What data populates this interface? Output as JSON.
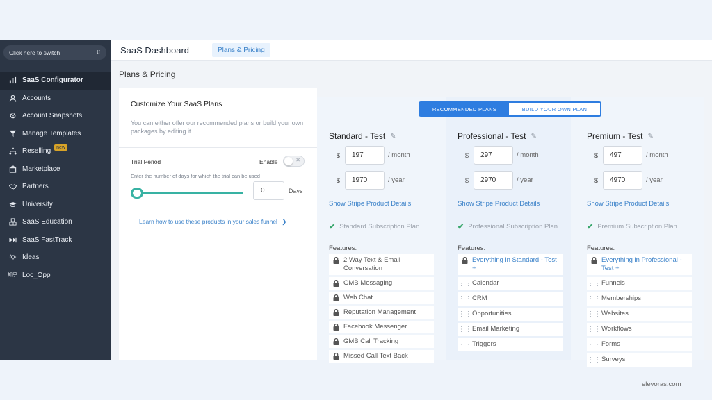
{
  "sidebar": {
    "switcher_label": "Click here to switch",
    "items": [
      {
        "label": "SaaS Configurator",
        "icon": "bar-chart-icon",
        "active": true
      },
      {
        "label": "Accounts",
        "icon": "user-icon"
      },
      {
        "label": "Account Snapshots",
        "icon": "gear-icon"
      },
      {
        "label": "Manage Templates",
        "icon": "filter-icon"
      },
      {
        "label": "Reselling",
        "icon": "sitemap-icon",
        "badge": "new"
      },
      {
        "label": "Marketplace",
        "icon": "shopping-bag-icon"
      },
      {
        "label": "Partners",
        "icon": "handshake-icon"
      },
      {
        "label": "University",
        "icon": "graduation-cap-icon"
      },
      {
        "label": "SaaS Education",
        "icon": "cubes-icon"
      },
      {
        "label": "SaaS FastTrack",
        "icon": "fast-forward-icon"
      },
      {
        "label": "Ideas",
        "icon": "lightbulb-icon"
      },
      {
        "label": "Loc_Opp",
        "icon": "text-glyph-icon",
        "icon_text": "知乎"
      }
    ]
  },
  "header": {
    "title": "SaaS Dashboard",
    "tab": "Plans & Pricing"
  },
  "page_title": "Plans & Pricing",
  "settings": {
    "heading": "Customize Your SaaS Plans",
    "description": "You can either offer our recommended plans or build your own packages by editing it.",
    "trial_label": "Trial Period",
    "enable_label": "Enable",
    "trial_help": "Enter the number of days for which the trial can be used",
    "trial_days": "0",
    "days_label": "Days",
    "slider_fraction": 0,
    "learn_link": "Learn how to use these products in your sales funnel"
  },
  "plan_switch": {
    "recommended": "RECOMMENDED PLANS",
    "build": "BUILD YOUR OWN PLAN"
  },
  "plans": [
    {
      "name": "Standard - Test",
      "currency": "$",
      "monthly": "197",
      "yearly": "1970",
      "per_month": "/ month",
      "per_year": "/ year",
      "stripe_link": "Show Stripe Product Details",
      "subscription": "Standard Subscription Plan",
      "features_label": "Features:",
      "features": [
        {
          "text": "2 Way Text & Email Conversation",
          "icon": "lock-icon"
        },
        {
          "text": "GMB Messaging",
          "icon": "lock-icon"
        },
        {
          "text": "Web Chat",
          "icon": "lock-icon"
        },
        {
          "text": "Reputation Management",
          "icon": "lock-icon"
        },
        {
          "text": "Facebook Messenger",
          "icon": "lock-icon"
        },
        {
          "text": "GMB Call Tracking",
          "icon": "lock-icon"
        },
        {
          "text": "Missed Call Text Back",
          "icon": "lock-icon"
        }
      ]
    },
    {
      "name": "Professional - Test",
      "currency": "$",
      "monthly": "297",
      "yearly": "2970",
      "per_month": "/ month",
      "per_year": "/ year",
      "stripe_link": "Show Stripe Product Details",
      "subscription": "Professional Subscription Plan",
      "features_label": "Features:",
      "features": [
        {
          "text": "Everything in Standard - Test +",
          "icon": "lock-icon",
          "highlight": true
        },
        {
          "text": "Calendar",
          "icon": "drag-handle-icon"
        },
        {
          "text": "CRM",
          "icon": "drag-handle-icon"
        },
        {
          "text": "Opportunities",
          "icon": "drag-handle-icon"
        },
        {
          "text": "Email Marketing",
          "icon": "drag-handle-icon"
        },
        {
          "text": "Triggers",
          "icon": "drag-handle-icon"
        }
      ]
    },
    {
      "name": "Premium - Test",
      "currency": "$",
      "monthly": "497",
      "yearly": "4970",
      "per_month": "/ month",
      "per_year": "/ year",
      "stripe_link": "Show Stripe Product Details",
      "subscription": "Premium Subscription Plan",
      "features_label": "Features:",
      "features": [
        {
          "text": "Everything in Professional - Test +",
          "icon": "lock-icon",
          "highlight": true
        },
        {
          "text": "Funnels",
          "icon": "drag-handle-icon"
        },
        {
          "text": "Memberships",
          "icon": "drag-handle-icon"
        },
        {
          "text": "Websites",
          "icon": "drag-handle-icon"
        },
        {
          "text": "Workflows",
          "icon": "drag-handle-icon"
        },
        {
          "text": "Forms",
          "icon": "drag-handle-icon"
        },
        {
          "text": "Surveys",
          "icon": "drag-handle-icon"
        }
      ]
    }
  ],
  "watermark": "elevoras.com",
  "colors": {
    "sidebar_bg": "#2c3645",
    "accent_blue": "#2e7de0",
    "slider_teal": "#38b2a3",
    "badge_gold": "#d8a327",
    "check_green": "#3aa76d"
  }
}
